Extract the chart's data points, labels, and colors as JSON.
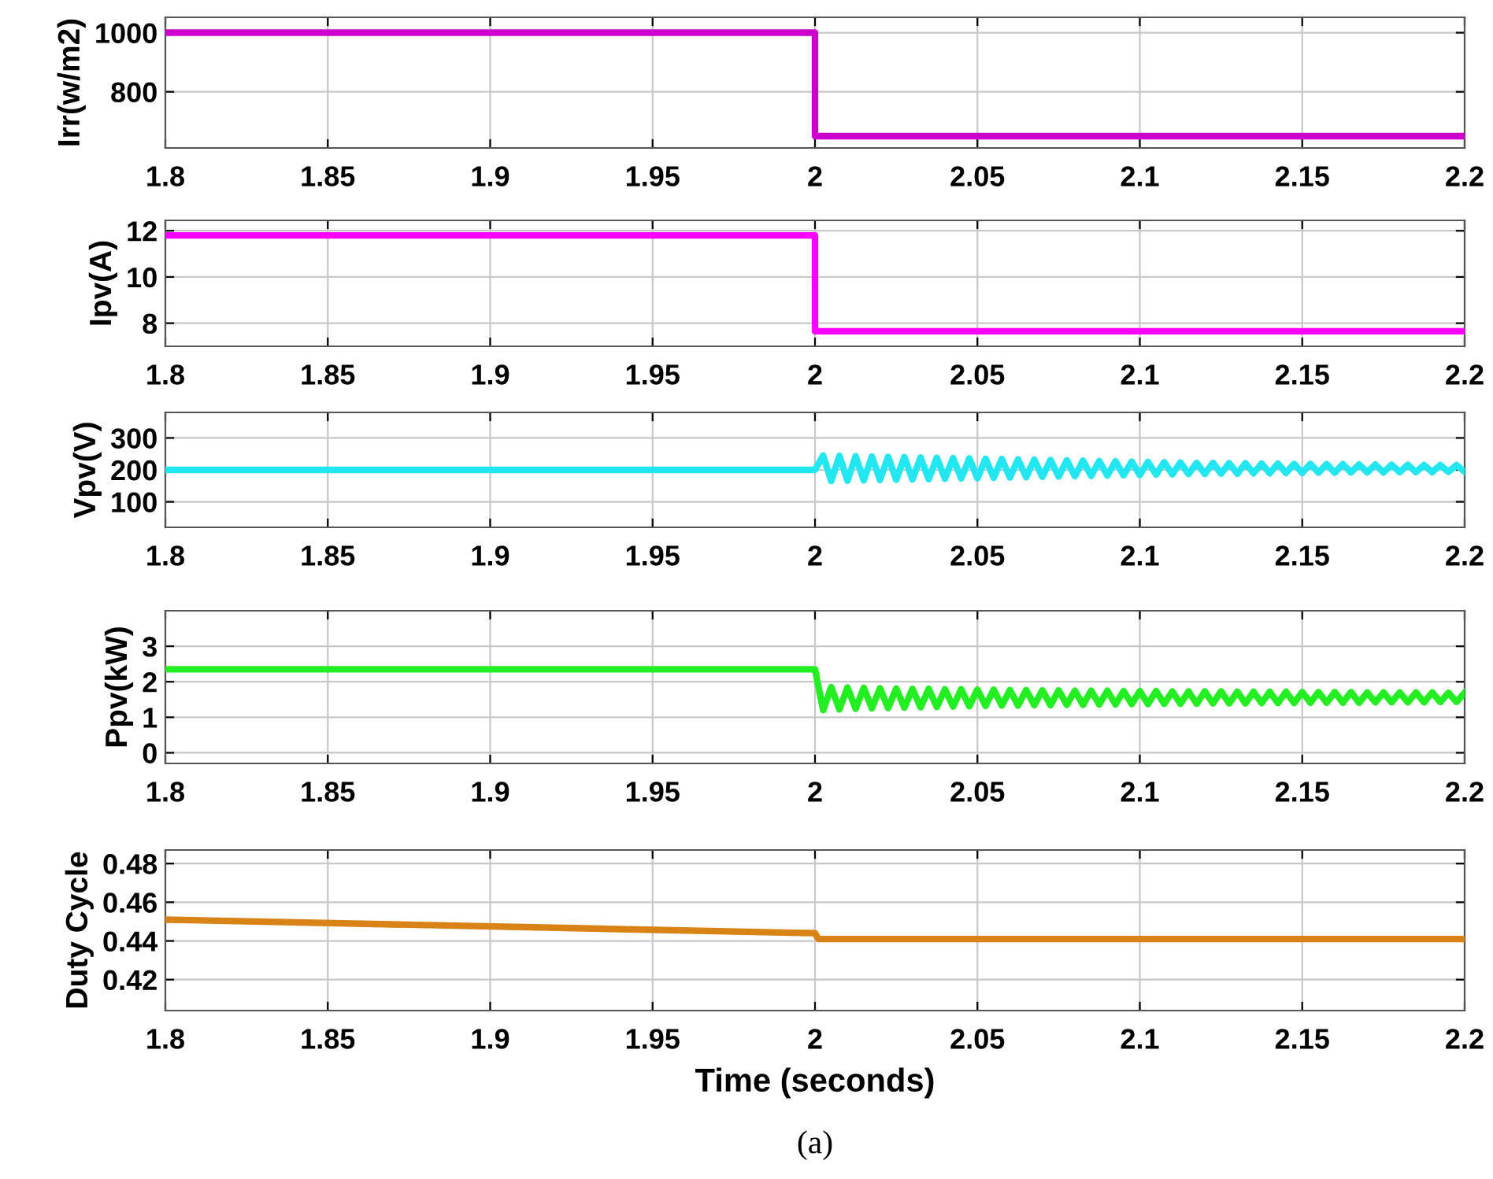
{
  "chart_data": [
    {
      "type": "line",
      "ylabel": "Irr(w/m2)",
      "xlim": [
        1.8,
        2.2
      ],
      "xticks": [
        1.8,
        1.85,
        1.9,
        1.95,
        2,
        2.05,
        2.1,
        2.15,
        2.2
      ],
      "ylim": [
        610,
        1052
      ],
      "yticks": [
        800,
        1000
      ],
      "grid": true,
      "series": [
        {
          "color": "#cc00cc",
          "x": [
            1.8,
            2.0,
            2.0,
            2.2
          ],
          "values": [
            1000,
            1000,
            650,
            650
          ]
        }
      ]
    },
    {
      "type": "line",
      "ylabel": "Ipv(A)",
      "xlim": [
        1.8,
        2.2
      ],
      "xticks": [
        1.8,
        1.85,
        1.9,
        1.95,
        2,
        2.05,
        2.1,
        2.15,
        2.2
      ],
      "ylim": [
        7,
        12.45
      ],
      "yticks": [
        8,
        10,
        12
      ],
      "grid": true,
      "series": [
        {
          "color": "#ff00ff",
          "x": [
            1.8,
            2.0,
            2.0,
            2.2
          ],
          "values": [
            11.8,
            11.8,
            7.65,
            7.65
          ]
        }
      ]
    },
    {
      "type": "line",
      "ylabel": "Vpv(V)",
      "xlim": [
        1.8,
        2.2
      ],
      "xticks": [
        1.8,
        1.85,
        1.9,
        1.95,
        2,
        2.05,
        2.1,
        2.15,
        2.2
      ],
      "ylim": [
        20,
        380
      ],
      "yticks": [
        100,
        200,
        300
      ],
      "grid": true,
      "series": [
        {
          "color": "#22e6f0",
          "x": [
            1.8,
            2.0,
            2.0025,
            2.005,
            2.0075,
            2.01,
            2.0125,
            2.015,
            2.0175,
            2.02,
            2.0225,
            2.025,
            2.0275,
            2.03,
            2.0325,
            2.035,
            2.0375,
            2.04,
            2.0425,
            2.045,
            2.0475,
            2.05,
            2.0525,
            2.055,
            2.0575,
            2.06,
            2.0625,
            2.065,
            2.0675,
            2.07,
            2.0725,
            2.075,
            2.0775,
            2.08,
            2.0825,
            2.085,
            2.0875,
            2.09,
            2.0925,
            2.095,
            2.0975,
            2.1,
            2.1025,
            2.105,
            2.1075,
            2.11,
            2.1125,
            2.115,
            2.1175,
            2.12,
            2.1225,
            2.125,
            2.1275,
            2.13,
            2.1325,
            2.135,
            2.1375,
            2.14,
            2.1425,
            2.145,
            2.1475,
            2.15,
            2.1525,
            2.155,
            2.1575,
            2.16,
            2.1625,
            2.165,
            2.1675,
            2.17,
            2.1725,
            2.175,
            2.1775,
            2.18,
            2.1825,
            2.185,
            2.1875,
            2.19,
            2.1925,
            2.195,
            2.1975,
            2.2
          ],
          "values": [
            200,
            200,
            245,
            165,
            244,
            166,
            243,
            167,
            242,
            168,
            241,
            169,
            240,
            170,
            239,
            171,
            238,
            172,
            237,
            173,
            236,
            174,
            235,
            175,
            234,
            176,
            233,
            177,
            232,
            178,
            231,
            179,
            230,
            180,
            229,
            181,
            228,
            182,
            227,
            183,
            226,
            184,
            225,
            185,
            224,
            186,
            223,
            187,
            222,
            187,
            222,
            188,
            221,
            188,
            221,
            189,
            220,
            189,
            220,
            190,
            219,
            190,
            219,
            191,
            218,
            191,
            218,
            192,
            217,
            192,
            217,
            192,
            216,
            193,
            216,
            193,
            215,
            193,
            215,
            194,
            215,
            194
          ]
        }
      ]
    },
    {
      "type": "line",
      "ylabel": "Ppv(kW)",
      "xlim": [
        1.8,
        2.2
      ],
      "xticks": [
        1.8,
        1.85,
        1.9,
        1.95,
        2,
        2.05,
        2.1,
        2.15,
        2.2
      ],
      "ylim": [
        -0.3,
        4
      ],
      "yticks": [
        0,
        1,
        2,
        3
      ],
      "grid": true,
      "series": [
        {
          "color": "#22ee22",
          "x": [
            1.8,
            2.0,
            2.0025,
            2.005,
            2.0075,
            2.01,
            2.0125,
            2.015,
            2.0175,
            2.02,
            2.0225,
            2.025,
            2.0275,
            2.03,
            2.0325,
            2.035,
            2.0375,
            2.04,
            2.0425,
            2.045,
            2.0475,
            2.05,
            2.0525,
            2.055,
            2.0575,
            2.06,
            2.0625,
            2.065,
            2.0675,
            2.07,
            2.0725,
            2.075,
            2.0775,
            2.08,
            2.0825,
            2.085,
            2.0875,
            2.09,
            2.0925,
            2.095,
            2.0975,
            2.1,
            2.1025,
            2.105,
            2.1075,
            2.11,
            2.1125,
            2.115,
            2.1175,
            2.12,
            2.1225,
            2.125,
            2.1275,
            2.13,
            2.1325,
            2.135,
            2.1375,
            2.14,
            2.1425,
            2.145,
            2.1475,
            2.15,
            2.1525,
            2.155,
            2.1575,
            2.16,
            2.1625,
            2.165,
            2.1675,
            2.17,
            2.1725,
            2.175,
            2.1775,
            2.18,
            2.1825,
            2.185,
            2.1875,
            2.19,
            2.1925,
            2.195,
            2.1975,
            2.2
          ],
          "values": [
            2.35,
            2.35,
            1.2,
            1.85,
            1.22,
            1.84,
            1.24,
            1.83,
            1.25,
            1.82,
            1.26,
            1.81,
            1.27,
            1.8,
            1.28,
            1.8,
            1.29,
            1.79,
            1.3,
            1.79,
            1.31,
            1.78,
            1.32,
            1.78,
            1.33,
            1.77,
            1.33,
            1.77,
            1.34,
            1.76,
            1.34,
            1.76,
            1.35,
            1.75,
            1.35,
            1.75,
            1.36,
            1.75,
            1.36,
            1.74,
            1.37,
            1.74,
            1.37,
            1.74,
            1.38,
            1.73,
            1.38,
            1.73,
            1.38,
            1.73,
            1.39,
            1.73,
            1.39,
            1.72,
            1.39,
            1.72,
            1.4,
            1.72,
            1.4,
            1.72,
            1.4,
            1.71,
            1.41,
            1.71,
            1.41,
            1.71,
            1.41,
            1.71,
            1.41,
            1.7,
            1.42,
            1.7,
            1.42,
            1.7,
            1.42,
            1.7,
            1.42,
            1.7,
            1.43,
            1.69,
            1.43,
            1.69
          ]
        }
      ]
    },
    {
      "type": "line",
      "ylabel": "Duty Cycle",
      "xlabel": "Time (seconds)",
      "annotations": [
        "(a)"
      ],
      "xlim": [
        1.8,
        2.2
      ],
      "xticks": [
        1.8,
        1.85,
        1.9,
        1.95,
        2,
        2.05,
        2.1,
        2.15,
        2.2
      ],
      "ylim": [
        0.404,
        0.487
      ],
      "yticks": [
        0.42,
        0.44,
        0.46,
        0.48
      ],
      "grid": true,
      "series": [
        {
          "color": "#d98316",
          "x": [
            1.8,
            2.0,
            2.001,
            2.2
          ],
          "values": [
            0.451,
            0.444,
            0.441,
            0.441
          ]
        }
      ]
    }
  ]
}
